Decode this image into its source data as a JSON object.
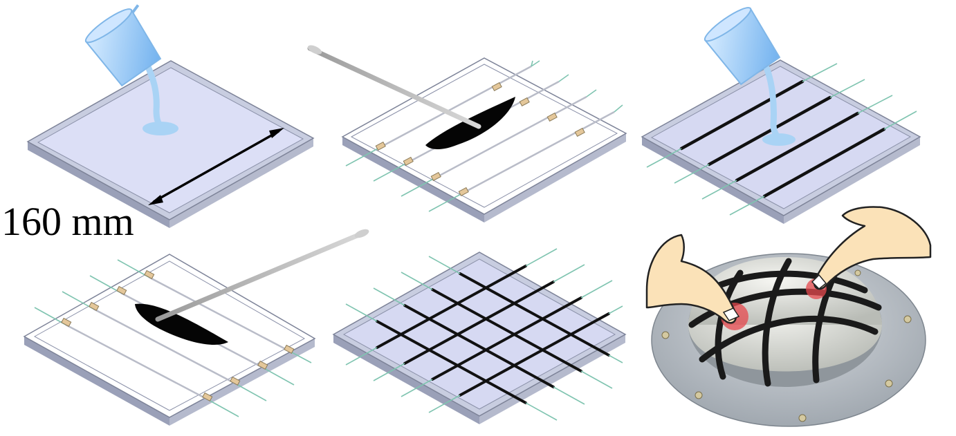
{
  "diagram": {
    "dimension_label": "160 mm",
    "colors": {
      "frame": "#c8cde0",
      "frame_dark": "#8a90a8",
      "tray_fill": "#d6d9f2",
      "liquid": "#a9d3f5",
      "wire": "#7fc4b0",
      "conductor": "#111111",
      "fingertip_mark": "#e5484d"
    },
    "steps": [
      {
        "name": "pour-base-layer",
        "icon": "beaker-icon"
      },
      {
        "name": "coat-conductive-strips",
        "icon": "brush-icon"
      },
      {
        "name": "pour-encapsulation",
        "icon": "beaker-icon"
      },
      {
        "name": "coat-cross-strips",
        "icon": "brush-icon"
      },
      {
        "name": "assembled-grid",
        "icon": "grid-icon"
      },
      {
        "name": "dome-touch-demo",
        "icon": "finger-icon"
      }
    ]
  }
}
